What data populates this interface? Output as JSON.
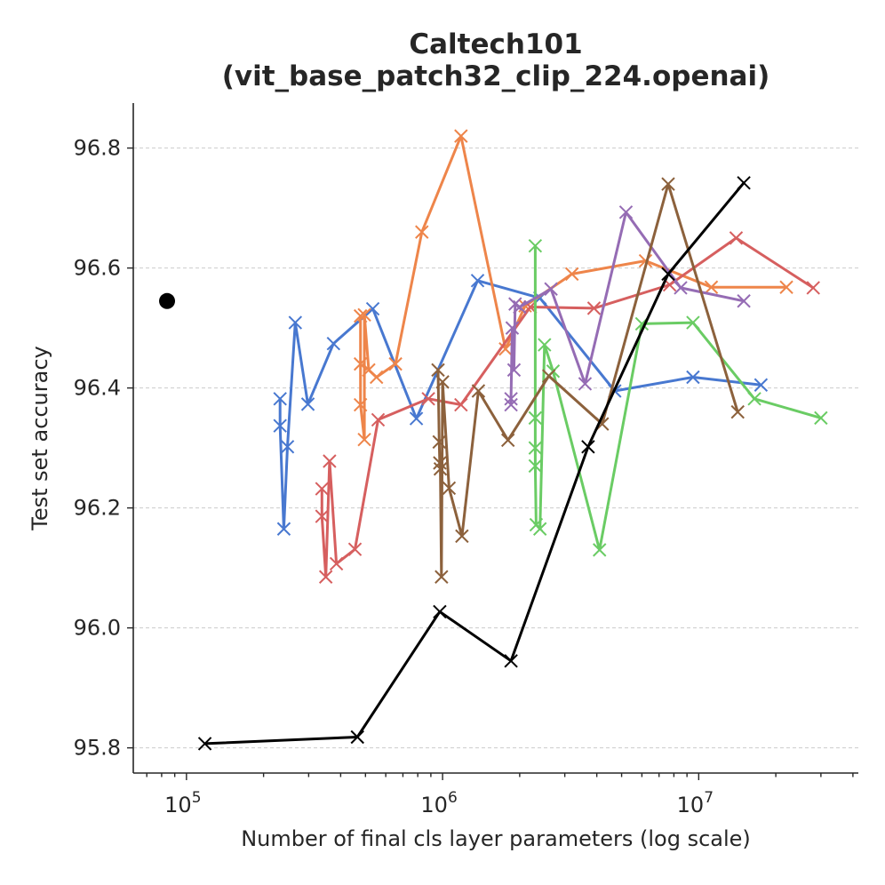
{
  "chart_data": {
    "type": "line",
    "title_lines": [
      "Caltech101",
      "(vit_base_patch32_clip_224.openai)"
    ],
    "xlabel": "Number of final cls layer parameters (log scale)",
    "ylabel": "Test set accuracy",
    "xscale": "log",
    "xlim": [
      62000,
      42000000
    ],
    "ylim": [
      95.758,
      96.875
    ],
    "yticks": [
      95.8,
      96.0,
      96.2,
      96.4,
      96.6,
      96.8
    ],
    "ytick_labels": [
      "95.8",
      "96.0",
      "96.2",
      "96.4",
      "96.6",
      "96.8"
    ],
    "xticks": [
      {
        "value": 100000,
        "base": "10",
        "exp": "5"
      },
      {
        "value": 1000000,
        "base": "10",
        "exp": "6"
      },
      {
        "value": 10000000,
        "base": "10",
        "exp": "7"
      }
    ],
    "grid": "y-dashed",
    "single_point": {
      "name": "baseline",
      "x": 84000,
      "y": 96.545,
      "color": "#000000"
    },
    "series": [
      {
        "name": "blue",
        "color": "#4878d0",
        "points": [
          [
            232000,
            96.382
          ],
          [
            232000,
            96.337
          ],
          [
            240000,
            96.165
          ],
          [
            248000,
            96.302
          ],
          [
            266000,
            96.509
          ],
          [
            298000,
            96.373
          ],
          [
            375000,
            96.474
          ],
          [
            534000,
            96.532
          ],
          [
            790000,
            96.349
          ],
          [
            1370000,
            96.579
          ],
          [
            2400000,
            96.55
          ],
          [
            4700000,
            96.395
          ],
          [
            9500000,
            96.418
          ],
          [
            17500000,
            96.405
          ]
        ]
      },
      {
        "name": "orange",
        "color": "#ee854a",
        "points": [
          [
            478000,
            96.52
          ],
          [
            478000,
            96.44
          ],
          [
            478000,
            96.372
          ],
          [
            495000,
            96.314
          ],
          [
            495000,
            96.522
          ],
          [
            515000,
            96.43
          ],
          [
            552000,
            96.418
          ],
          [
            655000,
            96.44
          ],
          [
            830000,
            96.66
          ],
          [
            1180000,
            96.82
          ],
          [
            1760000,
            96.465
          ],
          [
            2100000,
            96.537
          ],
          [
            3200000,
            96.59
          ],
          [
            6200000,
            96.612
          ],
          [
            11200000,
            96.568
          ],
          [
            22000000,
            96.568
          ]
        ]
      },
      {
        "name": "red",
        "color": "#d65f5f",
        "points": [
          [
            338000,
            96.232
          ],
          [
            338000,
            96.186
          ],
          [
            350000,
            96.085
          ],
          [
            362000,
            96.278
          ],
          [
            385000,
            96.107
          ],
          [
            455000,
            96.131
          ],
          [
            560000,
            96.347
          ],
          [
            880000,
            96.382
          ],
          [
            1180000,
            96.372
          ],
          [
            2200000,
            96.535
          ],
          [
            3900000,
            96.533
          ],
          [
            7700000,
            96.572
          ],
          [
            14000000,
            96.65
          ],
          [
            28000000,
            96.567
          ]
        ]
      },
      {
        "name": "green",
        "color": "#6acc64",
        "points": [
          [
            2300000,
            96.637
          ],
          [
            2300000,
            96.35
          ],
          [
            2300000,
            96.3
          ],
          [
            2300000,
            96.27
          ],
          [
            2320000,
            96.172
          ],
          [
            2400000,
            96.165
          ],
          [
            2500000,
            96.472
          ],
          [
            2700000,
            96.428
          ],
          [
            4100000,
            96.13
          ],
          [
            6000000,
            96.507
          ],
          [
            9500000,
            96.509
          ],
          [
            16500000,
            96.382
          ],
          [
            30000000,
            96.35
          ]
        ]
      },
      {
        "name": "purple",
        "color": "#956cb4",
        "points": [
          [
            1850000,
            96.372
          ],
          [
            1850000,
            96.382
          ],
          [
            1870000,
            96.5
          ],
          [
            1900000,
            96.43
          ],
          [
            1920000,
            96.54
          ],
          [
            2000000,
            96.535
          ],
          [
            2650000,
            96.565
          ],
          [
            3600000,
            96.407
          ],
          [
            5200000,
            96.693
          ],
          [
            8500000,
            96.567
          ],
          [
            15000000,
            96.545
          ]
        ]
      },
      {
        "name": "brown",
        "color": "#8c613c",
        "points": [
          [
            960000,
            96.43
          ],
          [
            970000,
            96.31
          ],
          [
            975000,
            96.275
          ],
          [
            980000,
            96.265
          ],
          [
            990000,
            96.085
          ],
          [
            1000000,
            96.41
          ],
          [
            1060000,
            96.233
          ],
          [
            1190000,
            96.153
          ],
          [
            1380000,
            96.395
          ],
          [
            1800000,
            96.313
          ],
          [
            2600000,
            96.42
          ],
          [
            4200000,
            96.34
          ],
          [
            7600000,
            96.74
          ],
          [
            14200000,
            96.36
          ]
        ]
      },
      {
        "name": "black",
        "color": "#000000",
        "points": [
          [
            118000,
            95.807
          ],
          [
            465000,
            95.818
          ],
          [
            975000,
            96.027
          ],
          [
            1850000,
            95.945
          ],
          [
            3700000,
            96.302
          ],
          [
            7600000,
            96.59
          ],
          [
            15000000,
            96.742
          ]
        ]
      }
    ]
  }
}
